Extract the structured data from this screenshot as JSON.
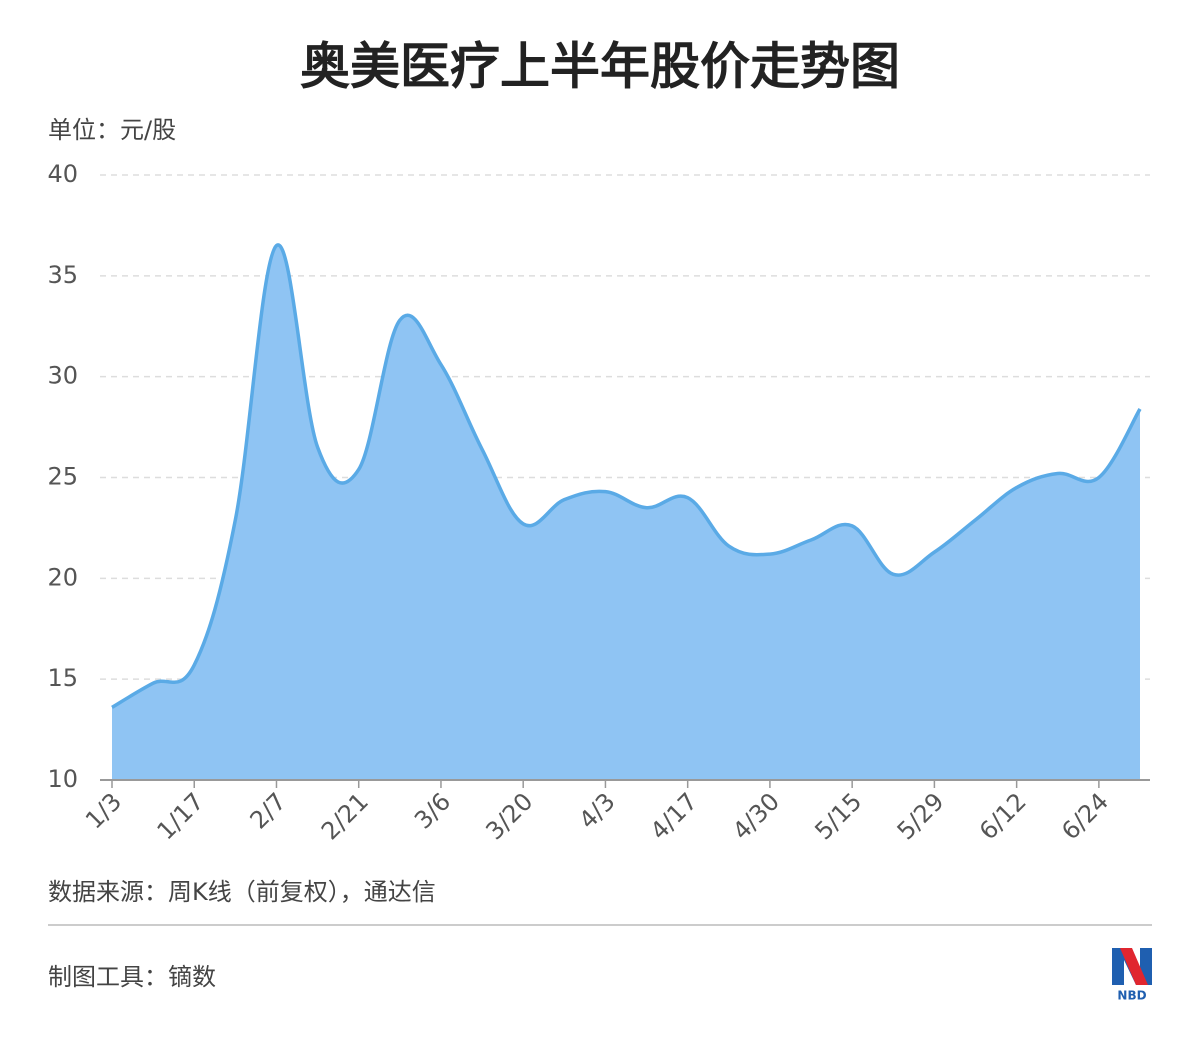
{
  "chart_data": {
    "type": "area",
    "title": "奥美医疗上半年股价走势图",
    "unit_label": "单位：元/股",
    "categories": [
      "1/3",
      null,
      "1/17",
      null,
      "2/7",
      null,
      "2/21",
      null,
      "3/6",
      null,
      "3/20",
      null,
      "4/3",
      null,
      "4/17",
      null,
      "4/30",
      null,
      "5/15",
      null,
      "5/29",
      null,
      "6/12",
      null,
      "6/24",
      null
    ],
    "series": [
      {
        "name": "股价",
        "color": "#5aaae6",
        "values": [
          13.6,
          14.8,
          15.7,
          22.9,
          36.5,
          26.5,
          25.4,
          32.8,
          30.6,
          26.4,
          22.7,
          23.9,
          24.3,
          23.5,
          24.0,
          21.6,
          21.2,
          21.9,
          22.6,
          20.2,
          21.3,
          22.9,
          24.5,
          25.2,
          25.0,
          28.4
        ]
      }
    ],
    "fill": "#8fc4f3",
    "ylim": [
      10,
      40
    ],
    "yticks": [
      10,
      15,
      20,
      25,
      30,
      35,
      40
    ],
    "grid": true,
    "source": "数据来源：周K线（前复权），通达信",
    "tool": "制图工具：镝数",
    "logo": "NBD"
  }
}
